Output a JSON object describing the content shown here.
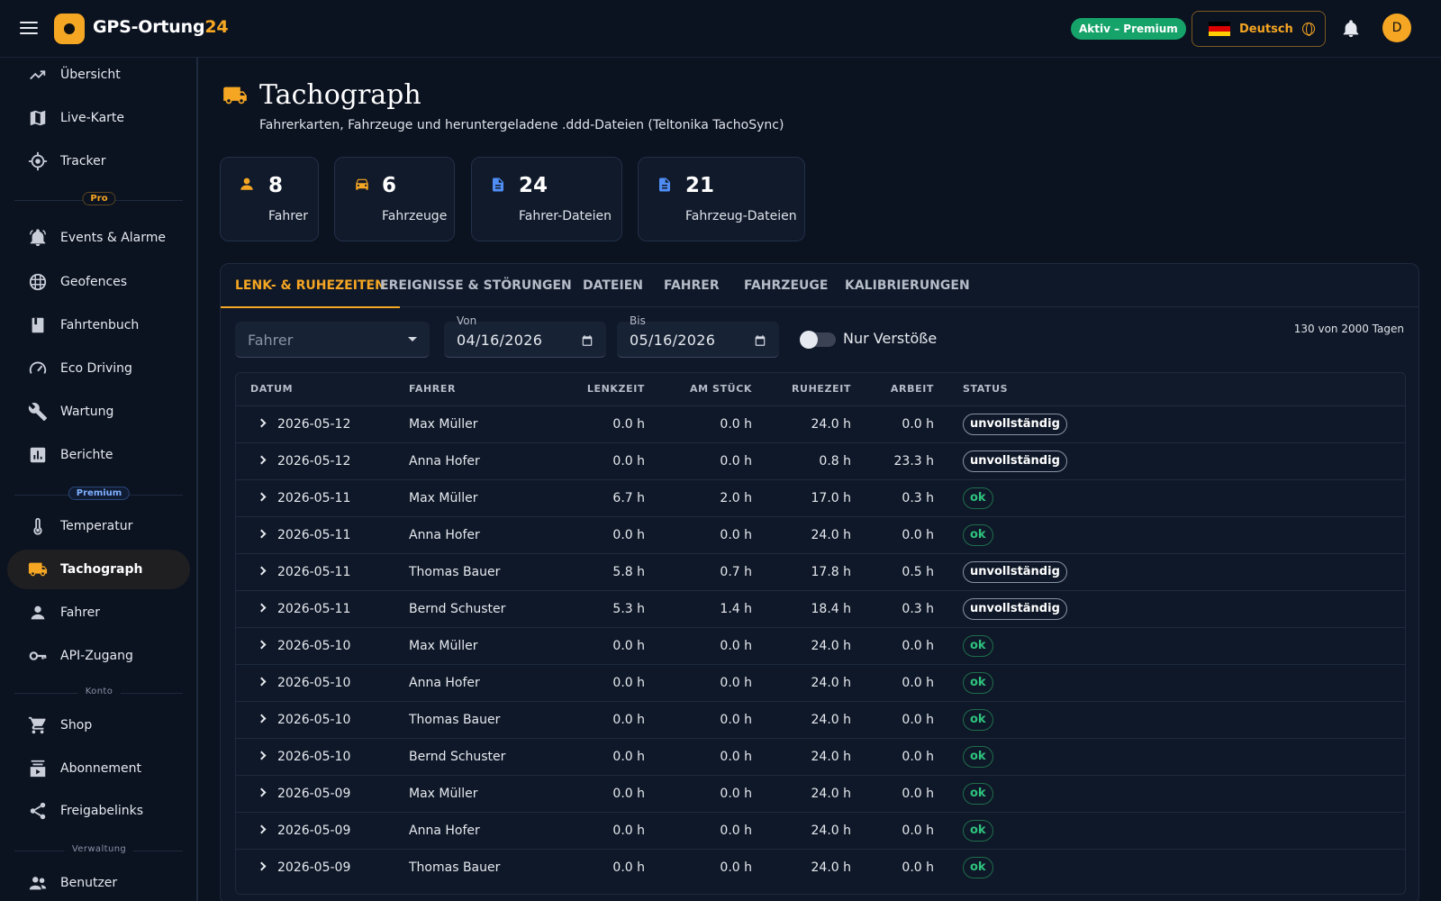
{
  "app": {
    "brand_main": "GPS-Ortung",
    "brand_accent": "24",
    "premium_status": "Aktiv – Premium",
    "language": "Deutsch",
    "avatar_initial": "D"
  },
  "sidebar": {
    "items": [
      {
        "label": "Übersicht",
        "icon": "trending-up-icon"
      },
      {
        "label": "Live-Karte",
        "icon": "map-icon"
      },
      {
        "label": "Tracker",
        "icon": "gps-target-icon"
      },
      {
        "label": "Events & Alarme",
        "icon": "alarm-bell-icon"
      },
      {
        "label": "Geofences",
        "icon": "grid-fence-icon"
      },
      {
        "label": "Fahrtenbuch",
        "icon": "logbook-icon"
      },
      {
        "label": "Eco Driving",
        "icon": "speedometer-icon"
      },
      {
        "label": "Wartung",
        "icon": "wrench-icon"
      },
      {
        "label": "Berichte",
        "icon": "bar-chart-icon"
      },
      {
        "label": "Temperatur",
        "icon": "thermometer-icon"
      },
      {
        "label": "Tachograph",
        "icon": "truck-icon"
      },
      {
        "label": "Fahrer",
        "icon": "person-icon"
      },
      {
        "label": "API-Zugang",
        "icon": "key-icon"
      },
      {
        "label": "Shop",
        "icon": "cart-icon"
      },
      {
        "label": "Abonnement",
        "icon": "subscriptions-icon"
      },
      {
        "label": "Freigabelinks",
        "icon": "share-icon"
      },
      {
        "label": "Benutzer",
        "icon": "users-icon"
      }
    ],
    "sections": {
      "pro": "Pro",
      "premium": "Premium",
      "konto": "Konto",
      "verwaltung": "Verwaltung"
    }
  },
  "page": {
    "title": "Tachograph",
    "subtitle": "Fahrerkarten, Fahrzeuge und heruntergeladene .ddd-Dateien (Teltonika TachoSync)"
  },
  "stats": [
    {
      "value": "8",
      "label": "Fahrer",
      "icon": "person-icon"
    },
    {
      "value": "6",
      "label": "Fahrzeuge",
      "icon": "car-icon"
    },
    {
      "value": "24",
      "label": "Fahrer-Dateien",
      "icon": "file-icon"
    },
    {
      "value": "21",
      "label": "Fahrzeug-Dateien",
      "icon": "file-icon"
    }
  ],
  "tabs": [
    "LENK- & RUHEZEITEN",
    "EREIGNISSE & STÖRUNGEN",
    "DATEIEN",
    "FAHRER",
    "FAHRZEUGE",
    "KALIBRIERUNGEN"
  ],
  "filters": {
    "driver_placeholder": "Fahrer",
    "from_label": "Von",
    "from_value": "04/16/2026",
    "to_label": "Bis",
    "to_value": "05/16/2026",
    "violations_label": "Nur Verstöße",
    "violations_on": false,
    "range_info": "130 von 2000 Tagen"
  },
  "table": {
    "headers": [
      "DATUM",
      "FAHRER",
      "LENKZEIT",
      "AM STÜCK",
      "RUHEZEIT",
      "ARBEIT",
      "STATUS"
    ],
    "rows": [
      {
        "date": "2026-05-12",
        "driver": "Max Müller",
        "lenk": "0.0 h",
        "stueck": "0.0 h",
        "ruhe": "24.0 h",
        "arbeit": "0.0 h",
        "status": "unvollständig"
      },
      {
        "date": "2026-05-12",
        "driver": "Anna Hofer",
        "lenk": "0.0 h",
        "stueck": "0.0 h",
        "ruhe": "0.8 h",
        "arbeit": "23.3 h",
        "status": "unvollständig"
      },
      {
        "date": "2026-05-11",
        "driver": "Max Müller",
        "lenk": "6.7 h",
        "stueck": "2.0 h",
        "ruhe": "17.0 h",
        "arbeit": "0.3 h",
        "status": "ok"
      },
      {
        "date": "2026-05-11",
        "driver": "Anna Hofer",
        "lenk": "0.0 h",
        "stueck": "0.0 h",
        "ruhe": "24.0 h",
        "arbeit": "0.0 h",
        "status": "ok"
      },
      {
        "date": "2026-05-11",
        "driver": "Thomas Bauer",
        "lenk": "5.8 h",
        "stueck": "0.7 h",
        "ruhe": "17.8 h",
        "arbeit": "0.5 h",
        "status": "unvollständig"
      },
      {
        "date": "2026-05-11",
        "driver": "Bernd Schuster",
        "lenk": "5.3 h",
        "stueck": "1.4 h",
        "ruhe": "18.4 h",
        "arbeit": "0.3 h",
        "status": "unvollständig"
      },
      {
        "date": "2026-05-10",
        "driver": "Max Müller",
        "lenk": "0.0 h",
        "stueck": "0.0 h",
        "ruhe": "24.0 h",
        "arbeit": "0.0 h",
        "status": "ok"
      },
      {
        "date": "2026-05-10",
        "driver": "Anna Hofer",
        "lenk": "0.0 h",
        "stueck": "0.0 h",
        "ruhe": "24.0 h",
        "arbeit": "0.0 h",
        "status": "ok"
      },
      {
        "date": "2026-05-10",
        "driver": "Thomas Bauer",
        "lenk": "0.0 h",
        "stueck": "0.0 h",
        "ruhe": "24.0 h",
        "arbeit": "0.0 h",
        "status": "ok"
      },
      {
        "date": "2026-05-10",
        "driver": "Bernd Schuster",
        "lenk": "0.0 h",
        "stueck": "0.0 h",
        "ruhe": "24.0 h",
        "arbeit": "0.0 h",
        "status": "ok"
      },
      {
        "date": "2026-05-09",
        "driver": "Max Müller",
        "lenk": "0.0 h",
        "stueck": "0.0 h",
        "ruhe": "24.0 h",
        "arbeit": "0.0 h",
        "status": "ok"
      },
      {
        "date": "2026-05-09",
        "driver": "Anna Hofer",
        "lenk": "0.0 h",
        "stueck": "0.0 h",
        "ruhe": "24.0 h",
        "arbeit": "0.0 h",
        "status": "ok"
      },
      {
        "date": "2026-05-09",
        "driver": "Thomas Bauer",
        "lenk": "0.0 h",
        "stueck": "0.0 h",
        "ruhe": "24.0 h",
        "arbeit": "0.0 h",
        "status": "ok"
      }
    ]
  },
  "colors": {
    "accent": "#f5a623",
    "background": "#0b1220",
    "ok": "#2ec27e",
    "premium_green": "#16a36a",
    "info_blue": "#4f8df5"
  }
}
